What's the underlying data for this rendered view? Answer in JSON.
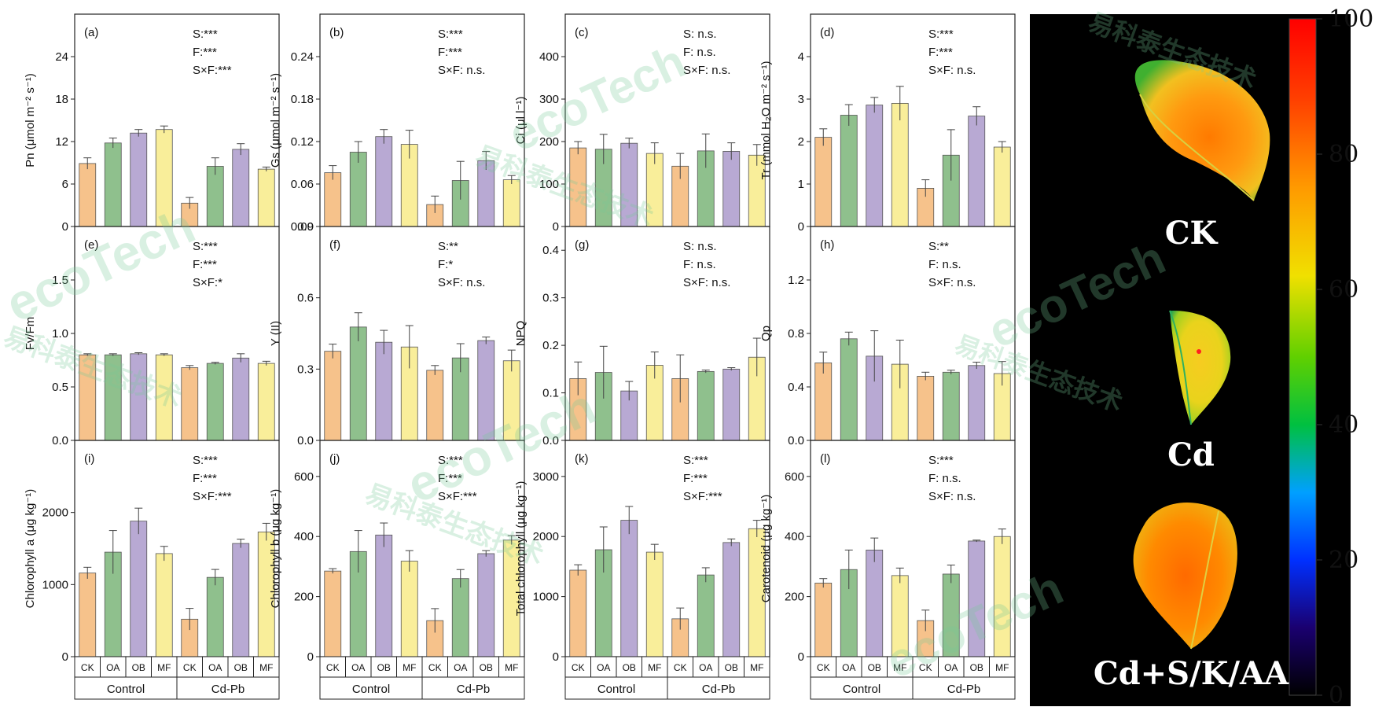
{
  "figure": {
    "group_labels": [
      "Control",
      "Cd-Pb"
    ],
    "treatment_labels": [
      "CK",
      "OA",
      "OB",
      "MF"
    ],
    "treatment_colors": [
      "#f6c28b",
      "#8fc08d",
      "#b8a9d3",
      "#f9ee9a"
    ],
    "watermark_text": [
      "易科泰生态技术",
      "ecoTech"
    ]
  },
  "chart_data": [
    {
      "type": "bar",
      "panel_label": "(a)",
      "ylabel": "Pn (μmol m⁻² s⁻¹)",
      "ylim": [
        0,
        30
      ],
      "yticks": [
        "0",
        "6",
        "12",
        "18",
        "24"
      ],
      "ytick_values": [
        0,
        6,
        12,
        18,
        24
      ],
      "stats": [
        "S:***",
        "F:***",
        "S×F:***"
      ],
      "categories": [
        "CK",
        "OA",
        "OB",
        "MF"
      ],
      "groups": [
        "Control",
        "Cd-Pb"
      ],
      "series": [
        {
          "group": "Control",
          "values": [
            8.9,
            11.8,
            13.2,
            13.7
          ],
          "errors": [
            0.8,
            0.7,
            0.5,
            0.5
          ]
        },
        {
          "group": "Cd-Pb",
          "values": [
            3.3,
            8.5,
            10.9,
            8.1
          ],
          "errors": [
            0.8,
            1.2,
            0.8,
            0.3
          ]
        }
      ]
    },
    {
      "type": "bar",
      "panel_label": "(b)",
      "ylabel": "Gs (μmol m⁻² s⁻¹)",
      "ylim": [
        0,
        0.3
      ],
      "yticks": [
        "0.00",
        "0.06",
        "0.12",
        "0.18",
        "0.24"
      ],
      "ytick_values": [
        0,
        0.06,
        0.12,
        0.18,
        0.24
      ],
      "stats": [
        "S:***",
        "F:***",
        "S×F: n.s."
      ],
      "categories": [
        "CK",
        "OA",
        "OB",
        "MF"
      ],
      "groups": [
        "Control",
        "Cd-Pb"
      ],
      "series": [
        {
          "group": "Control",
          "values": [
            0.076,
            0.105,
            0.127,
            0.116
          ],
          "errors": [
            0.01,
            0.015,
            0.01,
            0.02
          ]
        },
        {
          "group": "Cd-Pb",
          "values": [
            0.031,
            0.065,
            0.093,
            0.066
          ],
          "errors": [
            0.012,
            0.027,
            0.013,
            0.006
          ]
        }
      ]
    },
    {
      "type": "bar",
      "panel_label": "(c)",
      "ylabel": "Ci (μl l⁻¹)",
      "ylim": [
        0,
        500
      ],
      "yticks": [
        "0",
        "100",
        "200",
        "300",
        "400"
      ],
      "ytick_values": [
        0,
        100,
        200,
        300,
        400
      ],
      "stats": [
        "S: n.s.",
        "F: n.s.",
        "S×F: n.s."
      ],
      "categories": [
        "CK",
        "OA",
        "OB",
        "MF"
      ],
      "groups": [
        "Control",
        "Cd-Pb"
      ],
      "series": [
        {
          "group": "Control",
          "values": [
            185,
            182,
            196,
            172
          ],
          "errors": [
            15,
            35,
            12,
            25
          ]
        },
        {
          "group": "Cd-Pb",
          "values": [
            142,
            178,
            177,
            168
          ],
          "errors": [
            30,
            40,
            20,
            25
          ]
        }
      ]
    },
    {
      "type": "bar",
      "panel_label": "(d)",
      "ylabel": "Tr (mmol H₂O m⁻² s⁻¹)",
      "ylim": [
        0,
        5
      ],
      "yticks": [
        "0",
        "1",
        "2",
        "3",
        "4"
      ],
      "ytick_values": [
        0,
        1,
        2,
        3,
        4
      ],
      "stats": [
        "S:***",
        "F:***",
        "S×F: n.s."
      ],
      "categories": [
        "CK",
        "OA",
        "OB",
        "MF"
      ],
      "groups": [
        "Control",
        "Cd-Pb"
      ],
      "series": [
        {
          "group": "Control",
          "values": [
            2.1,
            2.62,
            2.86,
            2.9
          ],
          "errors": [
            0.2,
            0.25,
            0.18,
            0.4
          ]
        },
        {
          "group": "Cd-Pb",
          "values": [
            0.9,
            1.68,
            2.6,
            1.87
          ],
          "errors": [
            0.2,
            0.6,
            0.22,
            0.13
          ]
        }
      ]
    },
    {
      "type": "bar",
      "panel_label": "(e)",
      "ylabel": "Fv/Fm",
      "ylim": [
        0,
        2.0
      ],
      "yticks": [
        "0.0",
        "0.5",
        "1.0",
        "1.5"
      ],
      "ytick_values": [
        0,
        0.5,
        1.0,
        1.5
      ],
      "stats": [
        "S:***",
        "F:***",
        "S×F:*"
      ],
      "categories": [
        "CK",
        "OA",
        "OB",
        "MF"
      ],
      "groups": [
        "Control",
        "Cd-Pb"
      ],
      "series": [
        {
          "group": "Control",
          "values": [
            0.8,
            0.8,
            0.81,
            0.8
          ],
          "errors": [
            0.01,
            0.01,
            0.01,
            0.01
          ]
        },
        {
          "group": "Cd-Pb",
          "values": [
            0.68,
            0.72,
            0.77,
            0.72
          ],
          "errors": [
            0.02,
            0.01,
            0.04,
            0.02
          ]
        }
      ]
    },
    {
      "type": "bar",
      "panel_label": "(f)",
      "ylabel": "Y (II)",
      "ylim": [
        0,
        0.9
      ],
      "yticks": [
        "0.0",
        "0.3",
        "0.6",
        "0.9"
      ],
      "ytick_values": [
        0,
        0.3,
        0.6,
        0.9
      ],
      "stats": [
        "S:**",
        "F:*",
        "S×F: n.s."
      ],
      "categories": [
        "CK",
        "OA",
        "OB",
        "MF"
      ],
      "groups": [
        "Control",
        "Cd-Pb"
      ],
      "series": [
        {
          "group": "Control",
          "values": [
            0.375,
            0.477,
            0.413,
            0.393
          ],
          "errors": [
            0.03,
            0.06,
            0.05,
            0.09
          ]
        },
        {
          "group": "Cd-Pb",
          "values": [
            0.295,
            0.347,
            0.42,
            0.335
          ],
          "errors": [
            0.02,
            0.06,
            0.015,
            0.045
          ]
        }
      ]
    },
    {
      "type": "bar",
      "panel_label": "(g)",
      "ylabel": "NPQ",
      "ylim": [
        0,
        0.45
      ],
      "yticks": [
        "0.0",
        "0.1",
        "0.2",
        "0.3",
        "0.4"
      ],
      "ytick_values": [
        0,
        0.1,
        0.2,
        0.3,
        0.4
      ],
      "stats": [
        "S: n.s.",
        "F: n.s.",
        "S×F: n.s."
      ],
      "categories": [
        "CK",
        "OA",
        "OB",
        "MF"
      ],
      "groups": [
        "Control",
        "Cd-Pb"
      ],
      "series": [
        {
          "group": "Control",
          "values": [
            0.13,
            0.143,
            0.104,
            0.158
          ],
          "errors": [
            0.035,
            0.055,
            0.02,
            0.028
          ]
        },
        {
          "group": "Cd-Pb",
          "values": [
            0.13,
            0.145,
            0.15,
            0.175
          ],
          "errors": [
            0.05,
            0.003,
            0.003,
            0.04
          ]
        }
      ]
    },
    {
      "type": "bar",
      "panel_label": "(h)",
      "ylabel": "Qp",
      "ylim": [
        0,
        1.6
      ],
      "yticks": [
        "0.0",
        "0.4",
        "0.8",
        "1.2"
      ],
      "ytick_values": [
        0,
        0.4,
        0.8,
        1.2
      ],
      "stats": [
        "S:**",
        "F: n.s.",
        "S×F: n.s."
      ],
      "categories": [
        "CK",
        "OA",
        "OB",
        "MF"
      ],
      "groups": [
        "Control",
        "Cd-Pb"
      ],
      "series": [
        {
          "group": "Control",
          "values": [
            0.58,
            0.76,
            0.63,
            0.57
          ],
          "errors": [
            0.08,
            0.05,
            0.19,
            0.18
          ]
        },
        {
          "group": "Cd-Pb",
          "values": [
            0.48,
            0.51,
            0.56,
            0.5
          ],
          "errors": [
            0.03,
            0.015,
            0.025,
            0.09
          ]
        }
      ]
    },
    {
      "type": "bar",
      "panel_label": "(i)",
      "ylabel": "Chlorophyll a (μg kg⁻¹)",
      "ylim": [
        0,
        3000
      ],
      "yticks": [
        "0",
        "1000",
        "2000"
      ],
      "ytick_values": [
        0,
        1000,
        2000
      ],
      "stats": [
        "S:***",
        "F:***",
        "S×F:***"
      ],
      "categories": [
        "CK",
        "OA",
        "OB",
        "MF"
      ],
      "groups": [
        "Control",
        "Cd-Pb"
      ],
      "series": [
        {
          "group": "Control",
          "values": [
            1160,
            1450,
            1880,
            1430
          ],
          "errors": [
            80,
            300,
            180,
            100
          ]
        },
        {
          "group": "Cd-Pb",
          "values": [
            520,
            1100,
            1570,
            1730
          ],
          "errors": [
            150,
            110,
            60,
            120
          ]
        }
      ]
    },
    {
      "type": "bar",
      "panel_label": "(j)",
      "ylabel": "Chlorophyll b (μg kg⁻¹)",
      "ylim": [
        0,
        720
      ],
      "yticks": [
        "0",
        "200",
        "400",
        "600"
      ],
      "ytick_values": [
        0,
        200,
        400,
        600
      ],
      "stats": [
        "S:***",
        "F:***",
        "S×F:***"
      ],
      "categories": [
        "CK",
        "OA",
        "OB",
        "MF"
      ],
      "groups": [
        "Control",
        "Cd-Pb"
      ],
      "series": [
        {
          "group": "Control",
          "values": [
            285,
            350,
            405,
            318
          ],
          "errors": [
            8,
            70,
            40,
            35
          ]
        },
        {
          "group": "Cd-Pb",
          "values": [
            120,
            260,
            343,
            388
          ],
          "errors": [
            40,
            30,
            10,
            15
          ]
        }
      ]
    },
    {
      "type": "bar",
      "panel_label": "(k)",
      "ylabel": "Total chlorophyll (μg kg⁻¹)",
      "ylim": [
        0,
        3600
      ],
      "yticks": [
        "0",
        "1000",
        "2000",
        "3000"
      ],
      "ytick_values": [
        0,
        1000,
        2000,
        3000
      ],
      "stats": [
        "S:***",
        "F:***",
        "S×F:***"
      ],
      "categories": [
        "CK",
        "OA",
        "OB",
        "MF"
      ],
      "groups": [
        "Control",
        "Cd-Pb"
      ],
      "series": [
        {
          "group": "Control",
          "values": [
            1440,
            1780,
            2270,
            1740
          ],
          "errors": [
            90,
            380,
            230,
            130
          ]
        },
        {
          "group": "Cd-Pb",
          "values": [
            630,
            1360,
            1900,
            2130
          ],
          "errors": [
            180,
            120,
            60,
            140
          ]
        }
      ]
    },
    {
      "type": "bar",
      "panel_label": "(l)",
      "ylabel": "Carotenoid (μg kg⁻¹)",
      "ylim": [
        0,
        720
      ],
      "yticks": [
        "0",
        "200",
        "400",
        "600"
      ],
      "ytick_values": [
        0,
        200,
        400,
        600
      ],
      "stats": [
        "S:***",
        "F: n.s.",
        "S×F: n.s."
      ],
      "categories": [
        "CK",
        "OA",
        "OB",
        "MF"
      ],
      "groups": [
        "Control",
        "Cd-Pb"
      ],
      "series": [
        {
          "group": "Control",
          "values": [
            245,
            290,
            355,
            270
          ],
          "errors": [
            15,
            65,
            40,
            25
          ]
        },
        {
          "group": "Cd-Pb",
          "values": [
            120,
            275,
            385,
            400
          ],
          "errors": [
            35,
            30,
            3,
            25
          ]
        }
      ]
    }
  ],
  "fluorescence_panel": {
    "leaf_labels": [
      "CK",
      "Cd",
      "Cd+S/K/AA"
    ],
    "colorbar": {
      "min": 0,
      "max": 100,
      "tick_labels": [
        "0",
        "20",
        "40",
        "60",
        "80",
        "100"
      ],
      "tick_values": [
        0,
        20,
        40,
        60,
        80,
        100
      ]
    }
  }
}
